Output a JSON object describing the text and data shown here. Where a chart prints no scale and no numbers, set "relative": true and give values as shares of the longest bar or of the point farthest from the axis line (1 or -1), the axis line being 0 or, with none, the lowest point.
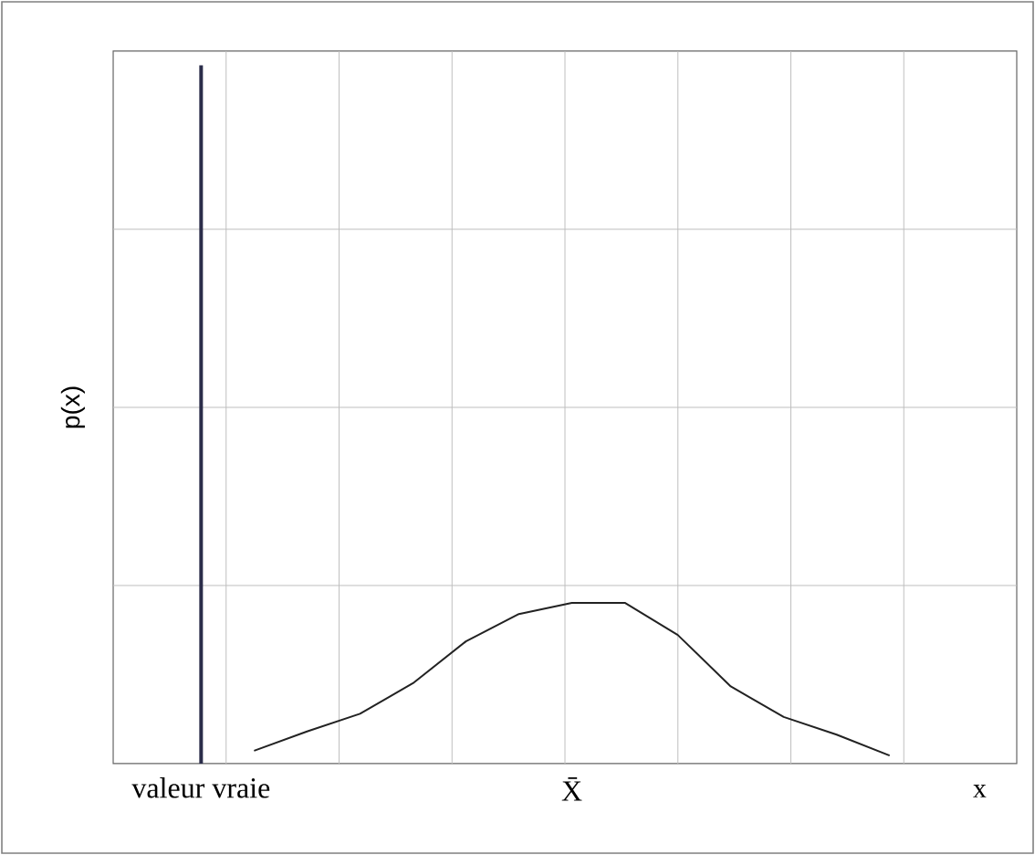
{
  "chart_data": {
    "type": "line",
    "relative": true,
    "annotations": [
      "p(x)"
    ],
    "xlabel": "x",
    "categories": [
      "valeur vraie",
      null,
      null,
      null,
      null,
      null,
      null,
      "X̄",
      null,
      null,
      null,
      null,
      null,
      null,
      null
    ],
    "series": [
      {
        "color": "#222222",
        "values": [
          null,
          0.08,
          0.2,
          0.31,
          0.5,
          0.76,
          0.93,
          1,
          1,
          0.8,
          0.48,
          0.29,
          0.18,
          0.05,
          null
        ]
      }
    ],
    "ref_lines": [
      {
        "axis": "x",
        "value": "valeur vraie",
        "color": "#2b2d4a"
      }
    ],
    "grid": true,
    "tick_labels": "x",
    "marker": "none",
    "line_style": "solid"
  }
}
